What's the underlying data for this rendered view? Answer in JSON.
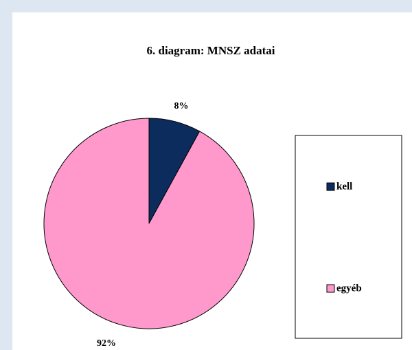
{
  "chart_data": {
    "type": "pie",
    "title": "6. diagram: MNSZ adatai",
    "categories": [
      "kell",
      "egyéb"
    ],
    "values": [
      8,
      92
    ],
    "value_labels": [
      "8%",
      "92%"
    ],
    "colors": [
      "#0b2c5c",
      "#ff99cc"
    ],
    "legend": "right"
  }
}
